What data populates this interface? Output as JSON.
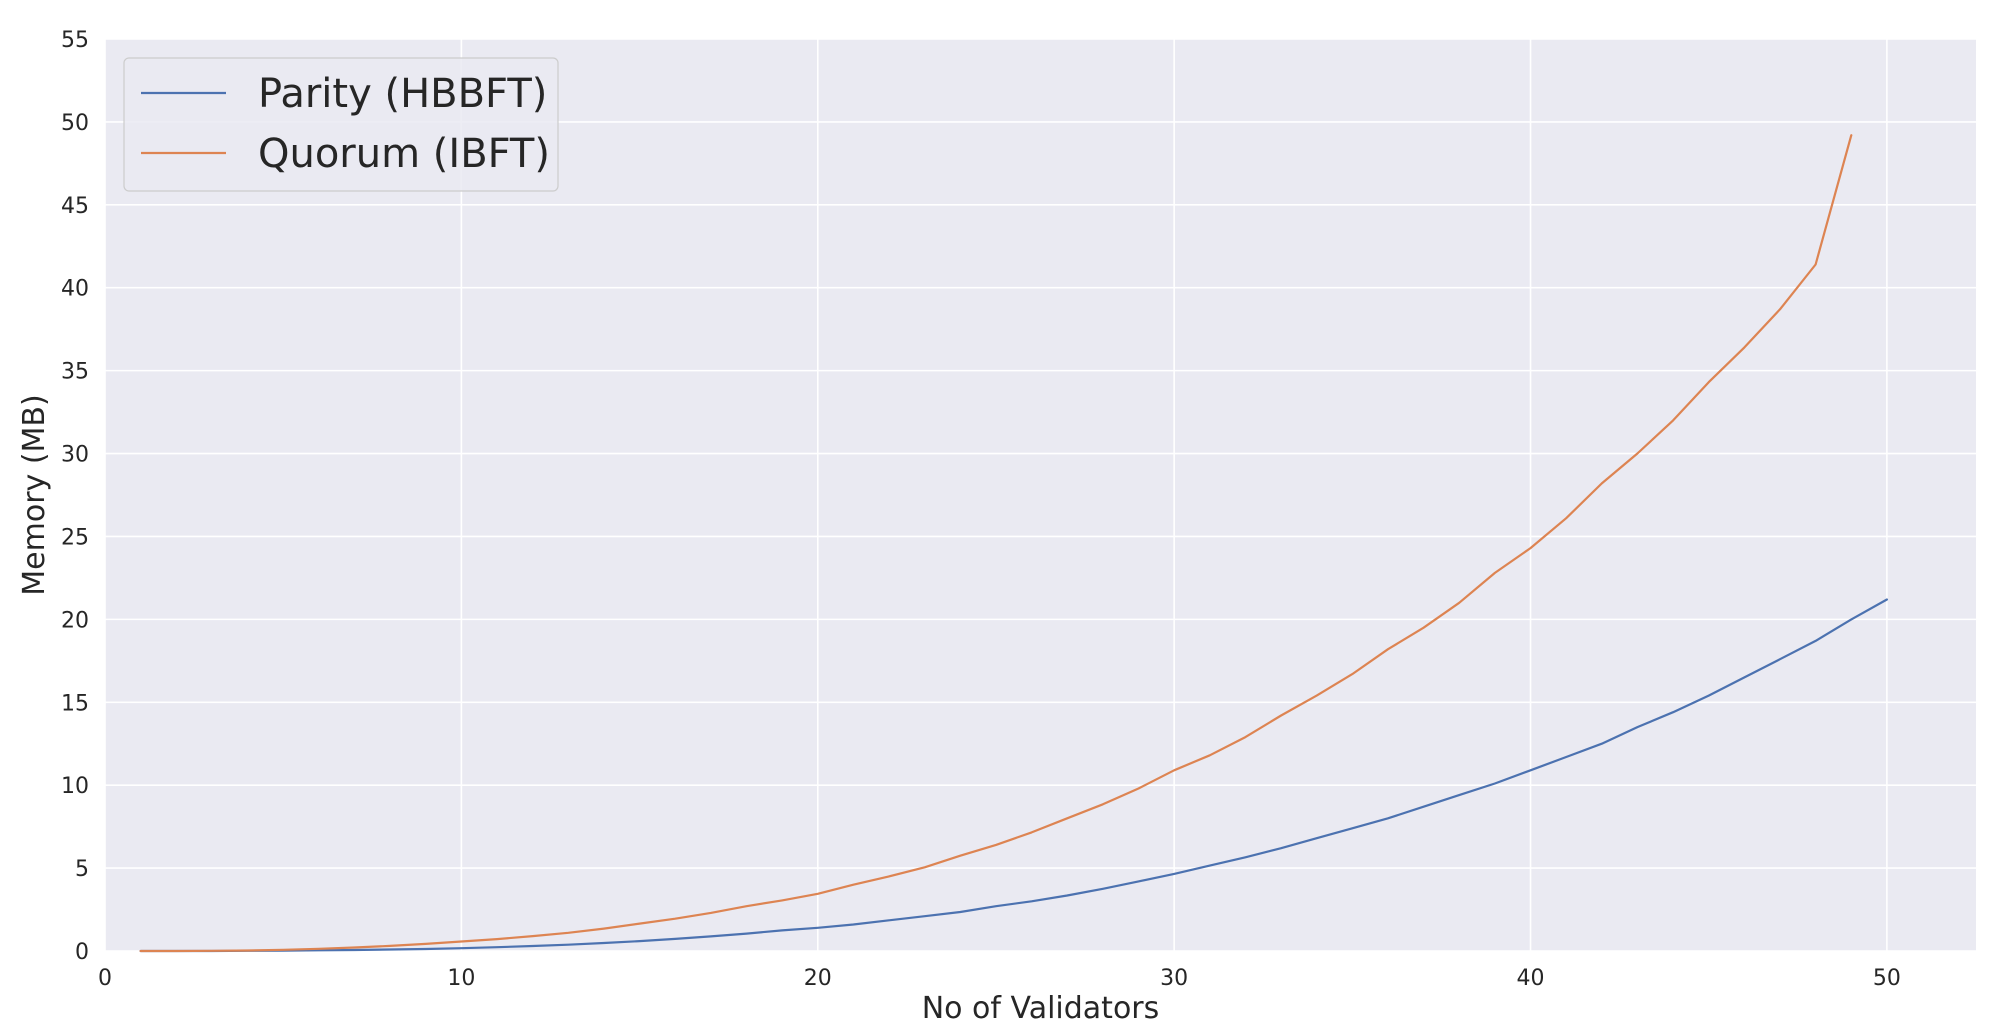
{
  "chart_data": {
    "type": "line",
    "title": "",
    "xlabel": "No of Validators",
    "ylabel": "Memory (MB)",
    "xlim": [
      0,
      52.5
    ],
    "ylim": [
      0,
      55
    ],
    "x_ticks": [
      0,
      10,
      20,
      30,
      40,
      50
    ],
    "y_ticks": [
      0,
      5,
      10,
      15,
      20,
      25,
      30,
      35,
      40,
      45,
      50,
      55
    ],
    "grid": true,
    "legend_position": "top-left",
    "background_color": "#eaeaf2",
    "series": [
      {
        "name": "Parity (HBBFT)",
        "color": "#4c72b0",
        "x": [
          1,
          2,
          3,
          4,
          5,
          6,
          7,
          8,
          9,
          10,
          11,
          12,
          13,
          14,
          15,
          16,
          17,
          18,
          19,
          20,
          21,
          22,
          23,
          24,
          25,
          26,
          27,
          28,
          29,
          30,
          31,
          32,
          33,
          34,
          35,
          36,
          37,
          38,
          39,
          40,
          41,
          42,
          43,
          44,
          45,
          46,
          47,
          48,
          49,
          50
        ],
        "y": [
          0.0,
          0.0,
          0.0,
          0.01,
          0.02,
          0.04,
          0.06,
          0.09,
          0.12,
          0.17,
          0.23,
          0.3,
          0.38,
          0.48,
          0.6,
          0.73,
          0.88,
          1.05,
          1.24,
          1.4,
          1.6,
          1.85,
          2.1,
          2.35,
          2.7,
          3.0,
          3.35,
          3.75,
          4.2,
          4.65,
          5.15,
          5.65,
          6.2,
          6.8,
          7.4,
          8.0,
          8.7,
          9.4,
          10.1,
          10.9,
          11.7,
          12.5,
          13.5,
          14.4,
          15.4,
          16.5,
          17.6,
          18.7,
          20.0,
          21.2
        ]
      },
      {
        "name": "Quorum (IBFT)",
        "color": "#dd8452",
        "x": [
          1,
          2,
          3,
          4,
          5,
          6,
          7,
          8,
          9,
          10,
          11,
          12,
          13,
          14,
          15,
          16,
          17,
          18,
          19,
          20,
          21,
          22,
          23,
          24,
          25,
          26,
          27,
          28,
          29,
          30,
          31,
          32,
          33,
          34,
          35,
          36,
          37,
          38,
          39,
          40,
          41,
          42,
          43,
          44,
          45,
          46,
          47,
          48,
          49
        ],
        "y": [
          0.0,
          0.0,
          0.01,
          0.03,
          0.07,
          0.13,
          0.21,
          0.31,
          0.43,
          0.57,
          0.72,
          0.9,
          1.1,
          1.35,
          1.65,
          1.95,
          2.3,
          2.7,
          3.05,
          3.45,
          4.0,
          4.5,
          5.05,
          5.75,
          6.4,
          7.15,
          8.0,
          8.85,
          9.8,
          10.9,
          11.8,
          12.9,
          14.2,
          15.4,
          16.7,
          18.2,
          19.5,
          21.0,
          22.8,
          24.3,
          26.1,
          28.2,
          30.0,
          32.0,
          34.3,
          36.4,
          38.7,
          41.4,
          49.2
        ]
      }
    ]
  }
}
